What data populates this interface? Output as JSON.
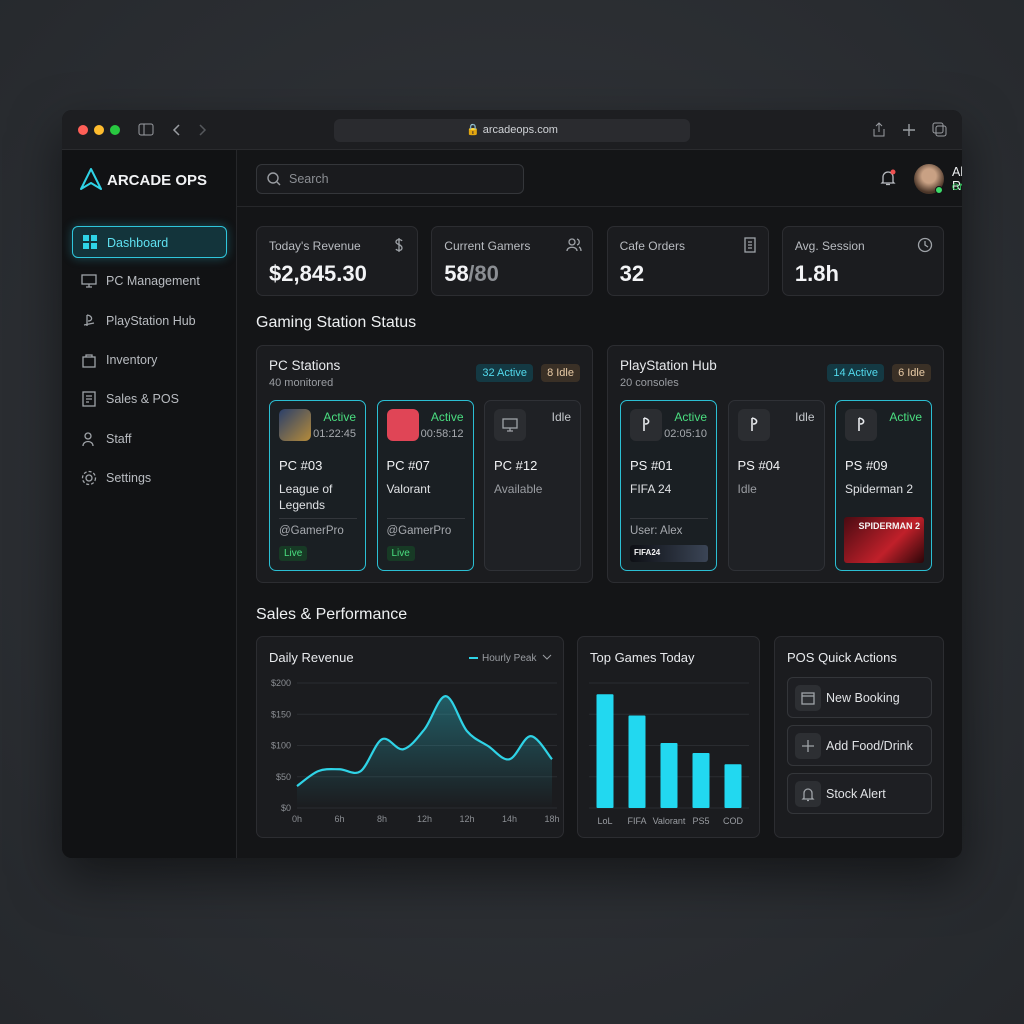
{
  "browser": {
    "url": "arcadeops.com"
  },
  "sidebar": {
    "brand": "ARCADE OPS",
    "nav": [
      "Dashboard",
      "PC Management",
      "PlayStation Hub",
      "Inventory",
      "Sales & POS",
      "Staff",
      "Settings"
    ]
  },
  "header": {
    "search": "Search",
    "user": "Alex R.",
    "status": "ONLINE"
  },
  "stats": [
    {
      "label": "Today's Revenue",
      "value": "$2,845.30"
    },
    {
      "label": "Current Gamers",
      "value": "58",
      "total": "/80"
    },
    {
      "label": "Cafe Orders",
      "value": "32"
    },
    {
      "label": "Avg. Session",
      "value": "1.8h"
    }
  ],
  "sections": [
    "Gaming Station Status",
    "Sales & Performance"
  ],
  "panels": [
    {
      "title": "PC Stations",
      "subtitle": "40 monitored",
      "active": "32 Active",
      "idle": "8 Idle",
      "stations": [
        {
          "id": "PC #03",
          "status": "Active",
          "time": "01:22:45",
          "game": "League of Legends",
          "user": "@GamerPro",
          "tag": "Live"
        },
        {
          "id": "PC #07",
          "status": "Active",
          "time": "00:58:12",
          "game": "Valorant",
          "user": "@GamerPro",
          "tag": "Live"
        },
        {
          "id": "PC #12",
          "status": "Idle",
          "game": "Available"
        }
      ]
    },
    {
      "title": "PlayStation Hub",
      "subtitle": "20 consoles",
      "active": "14 Active",
      "idle": "6 Idle",
      "stations": [
        {
          "id": "PS #01",
          "status": "Active",
          "time": "02:05:10",
          "game": "FIFA 24",
          "user": "User: Alex",
          "banner": "FIFA24"
        },
        {
          "id": "PS #04",
          "status": "Idle",
          "game": "Idle"
        },
        {
          "id": "PS #09",
          "status": "Active",
          "game": "Spiderman 2",
          "banner": "SPIDERMAN 2"
        }
      ]
    }
  ],
  "chart_data": [
    {
      "type": "line",
      "title": "Daily Revenue",
      "categories": [
        "0h",
        null,
        "6h",
        null,
        "8h",
        null,
        "12h",
        null,
        "12h",
        null,
        "14h",
        null,
        "18h"
      ],
      "series": [
        {
          "name": "Hourly Peak",
          "color": "#2fd3e6",
          "values": [
            35,
            59,
            62,
            59,
            110,
            94,
            126,
            179,
            123,
            99,
            78,
            115,
            78
          ]
        }
      ],
      "ylim": [
        0,
        200
      ],
      "yticks": [
        {
          "value": 0,
          "label": "$0"
        },
        {
          "value": 50,
          "label": "$50"
        },
        {
          "value": 100,
          "label": "$100"
        },
        {
          "value": 150,
          "label": "$150"
        },
        {
          "value": 200,
          "label": "$200"
        }
      ],
      "grid": true
    },
    {
      "type": "bar",
      "title": "Top Games Today",
      "categories": [
        "LoL",
        "FIFA",
        "Valorant",
        "PS5",
        "COD"
      ],
      "values": [
        91,
        74,
        52,
        44,
        35
      ],
      "color": "#22d8f0",
      "ylim": [
        0,
        100
      ],
      "yticks": [
        0,
        25,
        50,
        75,
        100
      ],
      "grid": true
    }
  ],
  "pos": {
    "title": "POS Quick Actions",
    "actions": [
      "New Booking",
      "Add Food/Drink",
      "Stock Alert"
    ]
  }
}
